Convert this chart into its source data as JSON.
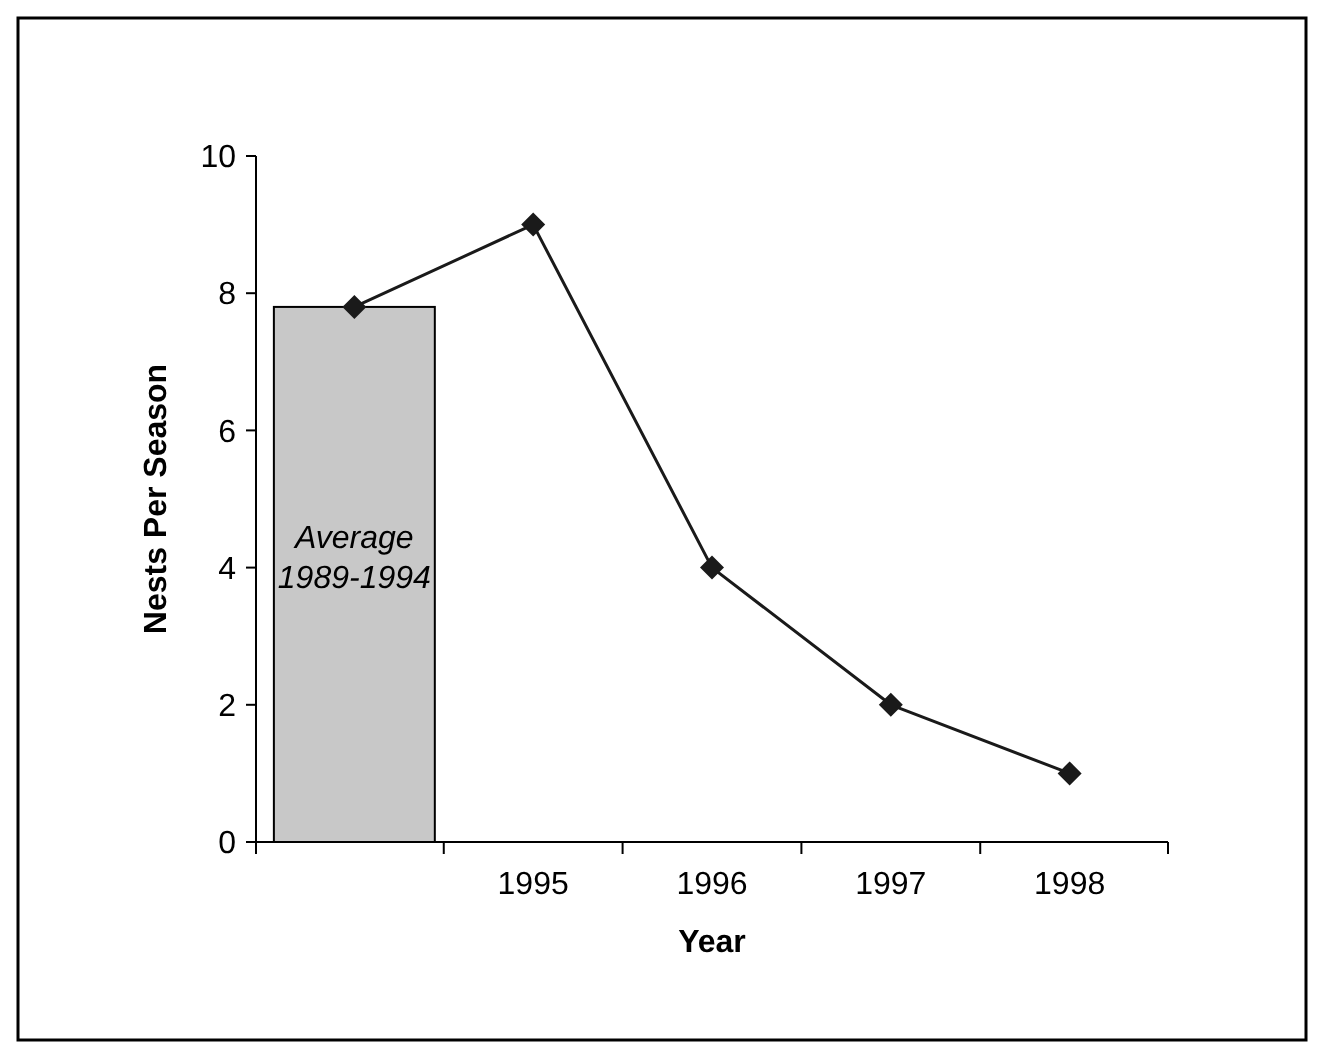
{
  "chart_data": {
    "type": "line",
    "xlabel": "Year",
    "ylabel": "Nests Per Season",
    "categories": [
      null,
      "1995",
      "1996",
      "1997",
      "1998"
    ],
    "series": [
      {
        "type": "bar",
        "color": "#c8c8c8",
        "values": [
          7.8,
          null,
          null,
          null,
          null
        ]
      },
      {
        "color": "#1a1a1a",
        "values": [
          7.8,
          9,
          4,
          2,
          1
        ]
      }
    ],
    "ylim": [
      0,
      10
    ],
    "yticks": [
      0,
      2,
      4,
      6,
      8,
      10
    ],
    "marker": "diamond",
    "line_style": "solid",
    "grid": false,
    "annotations": [
      "Average 1989-1994"
    ]
  }
}
